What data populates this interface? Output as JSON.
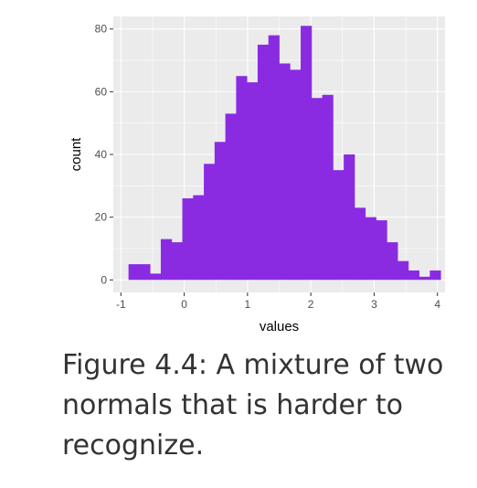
{
  "caption": "Figure 4.4: A mixture of two normals that is harder to recognize.",
  "colors": {
    "panel_background": "#ebebeb",
    "grid": "#ffffff",
    "bar_fill": "#8a2be2",
    "tick_text": "#4d4d4d",
    "tick_mark": "#333333"
  },
  "chart_data": {
    "type": "bar",
    "subtype": "histogram",
    "title": "",
    "xlabel": "values",
    "ylabel": "count",
    "xlim": [
      -1.12,
      4.12
    ],
    "ylim": [
      -4,
      84
    ],
    "x_ticks": [
      -1,
      0,
      1,
      2,
      3,
      4
    ],
    "x_tick_labels": [
      "-1",
      "0",
      "1",
      "2",
      "3",
      "4"
    ],
    "y_ticks": [
      0,
      20,
      40,
      60,
      80
    ],
    "y_tick_labels": [
      "0",
      "20",
      "40",
      "60",
      "80"
    ],
    "grid": true,
    "bin_width": 0.17,
    "bins_start": [
      -0.88,
      -0.71,
      -0.54,
      -0.37,
      -0.2,
      -0.03,
      0.14,
      0.31,
      0.48,
      0.65,
      0.82,
      0.99,
      1.16,
      1.33,
      1.5,
      1.67,
      1.84,
      2.01,
      2.18,
      2.35,
      2.52,
      2.69,
      2.86,
      3.03,
      3.2,
      3.37,
      3.54,
      3.71,
      3.88
    ],
    "values": [
      5,
      5,
      2,
      13,
      12,
      26,
      27,
      37,
      44,
      53,
      65,
      63,
      75,
      78,
      69,
      67,
      81,
      58,
      59,
      35,
      40,
      23,
      20,
      19,
      12,
      6,
      3,
      1,
      3
    ]
  }
}
